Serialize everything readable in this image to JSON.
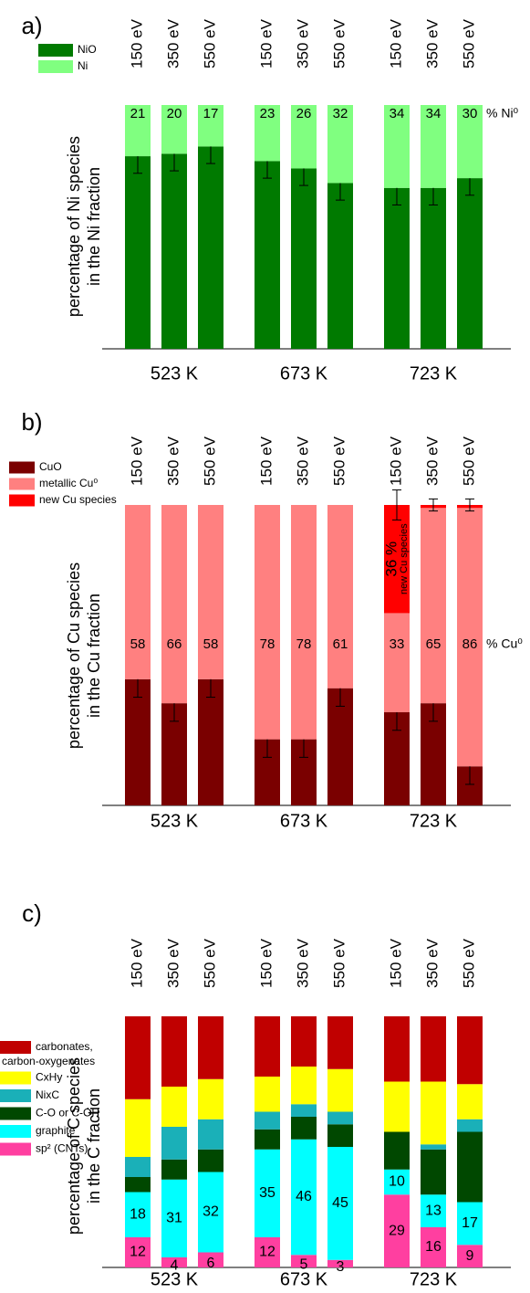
{
  "chart_data": [
    {
      "type": "bar",
      "stacked": true,
      "panel_label": "a)",
      "ylabel": [
        "percentage of Ni species",
        "in the Ni fraction"
      ],
      "categories": [
        "150 eV",
        "350 eV",
        "550 eV",
        "150 eV",
        "350 eV",
        "550 eV",
        "150 eV",
        "350 eV",
        "550 eV"
      ],
      "category_colors": [
        "#000000",
        "#999999",
        "#999999",
        "#000000",
        "#999999",
        "#999999",
        "#000000",
        "#999999",
        "#999999"
      ],
      "groups": [
        "523 K",
        "673 K",
        "723 K"
      ],
      "ylim": [
        0,
        100
      ],
      "annotation": "% Ni⁰",
      "series": [
        {
          "name": "NiO",
          "color": "#007a00",
          "values": [
            79,
            80,
            83,
            77,
            74,
            68,
            66,
            66,
            70
          ],
          "errors": [
            7,
            7,
            7,
            7,
            7,
            7,
            7,
            7,
            7
          ]
        },
        {
          "name": "Ni",
          "color": "#80ff80",
          "values": [
            21,
            20,
            17,
            23,
            26,
            32,
            34,
            34,
            30
          ],
          "show_values": true
        }
      ]
    },
    {
      "type": "bar",
      "stacked": true,
      "panel_label": "b)",
      "ylabel": [
        "percentage of Cu species",
        "in the Cu fraction"
      ],
      "categories": [
        "150 eV",
        "350 eV",
        "550 eV",
        "150 eV",
        "350 eV",
        "550 eV",
        "150 eV",
        "350 eV",
        "550 eV"
      ],
      "category_colors": [
        "#000000",
        "#999999",
        "#999999",
        "#000000",
        "#999999",
        "#999999",
        "#000000",
        "#999999",
        "#999999"
      ],
      "groups": [
        "523 K",
        "673 K",
        "723 K"
      ],
      "ylim": [
        0,
        100
      ],
      "annotation": "% Cu⁰",
      "series": [
        {
          "name": "CuO",
          "color": "#7a0000",
          "values": [
            42,
            34,
            42,
            22,
            22,
            39,
            31,
            34,
            13
          ],
          "errors": [
            6,
            6,
            6,
            6,
            6,
            6,
            6,
            6,
            6
          ]
        },
        {
          "name": "metallic Cu⁰",
          "color": "#ff8080",
          "values": [
            58,
            66,
            58,
            78,
            78,
            61,
            33,
            65,
            86
          ],
          "show_values": true
        },
        {
          "name": "new Cu species",
          "color": "#ff0000",
          "values": [
            0,
            0,
            0,
            0,
            0,
            0,
            36,
            1,
            1
          ],
          "errors": [
            null,
            null,
            null,
            null,
            null,
            null,
            5,
            2,
            2
          ],
          "value_labels": [
            null,
            null,
            null,
            null,
            null,
            null,
            "36 %",
            null,
            null
          ]
        }
      ]
    },
    {
      "type": "bar",
      "stacked": true,
      "panel_label": "c)",
      "ylabel": [
        "percentage of C species",
        "in the C fraction"
      ],
      "categories": [
        "150 eV",
        "350 eV",
        "550 eV",
        "150 eV",
        "350 eV",
        "550 eV",
        "150 eV",
        "350 eV",
        "550 eV"
      ],
      "category_colors": [
        "#000000",
        "#999999",
        "#999999",
        "#000000",
        "#999999",
        "#999999",
        "#000000",
        "#999999",
        "#999999"
      ],
      "groups": [
        "523 K",
        "673 K",
        "723 K"
      ],
      "ylim": [
        0,
        100
      ],
      "legend_reverse": true,
      "series": [
        {
          "name": "sp² (CNTs)",
          "color": "#ff3fa0",
          "values": [
            12,
            4,
            6,
            12,
            5,
            3,
            29,
            16,
            9
          ],
          "show_values": true
        },
        {
          "name": "graphite",
          "color": "#00ffff",
          "values": [
            18,
            31,
            32,
            35,
            46,
            45,
            10,
            13,
            17
          ],
          "show_values": true
        },
        {
          "name": "C-O or C-OH",
          "color": "#004800",
          "values": [
            6,
            8,
            9,
            8,
            9,
            9,
            15,
            18,
            28
          ]
        },
        {
          "name": "NixC",
          "color": "#1ab0b8",
          "values": [
            8,
            13,
            12,
            7,
            5,
            5,
            0,
            2,
            5
          ]
        },
        {
          "name": "CxHy",
          "color": "#ffff00",
          "values": [
            23,
            16,
            16,
            14,
            15,
            17,
            20,
            25,
            14
          ]
        },
        {
          "name": "carbonates, carbon-oxygenates",
          "color": "#c00000",
          "values": [
            33,
            28,
            25,
            24,
            20,
            21,
            26,
            26,
            27
          ]
        }
      ]
    }
  ]
}
